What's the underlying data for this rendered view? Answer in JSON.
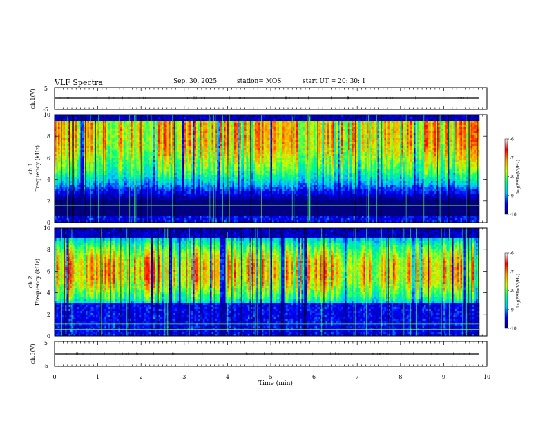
{
  "header": {
    "title": "VLF Spectra",
    "date": "Sep. 30, 2025",
    "station": "station= MOS",
    "start_ut": "start UT =  20: 30: 1"
  },
  "chart_data": [
    {
      "type": "line",
      "panel": "ch1-waveform",
      "ylabel": "ch.1(V)",
      "yticks": [
        "5",
        "-5"
      ],
      "ylim": [
        -5,
        5
      ],
      "series": [
        {
          "values_summary": "approximately flat trace near 0 V for the full 10 minutes"
        }
      ],
      "xlim": [
        0,
        10
      ]
    },
    {
      "type": "heatmap",
      "panel": "ch1-spectrogram",
      "ylabel_line1": "ch.1",
      "ylabel_line2": "Frequency (kHz)",
      "yticks": [
        "0",
        "2",
        "4",
        "6",
        "8",
        "10"
      ],
      "ylim": [
        0,
        10
      ],
      "xlim": [
        0,
        10
      ],
      "band_kHz": [
        0.5,
        9.5
      ],
      "peak_kHz": 8.3,
      "lines_kHz": [
        0.6,
        1.6
      ]
    },
    {
      "type": "heatmap",
      "panel": "ch2-spectrogram",
      "ylabel_line1": "ch.2",
      "ylabel_line2": "Frequency (kHz)",
      "yticks": [
        "0",
        "2",
        "4",
        "6",
        "8",
        "10"
      ],
      "ylim": [
        0,
        10
      ],
      "xlim": [
        0,
        10
      ],
      "band_kHz": [
        3,
        9
      ],
      "peak_kHz": 6.0,
      "lines_kHz": [
        0.6,
        1.1
      ]
    },
    {
      "type": "line",
      "panel": "ch3-waveform",
      "ylabel": "ch.3(V)",
      "yticks": [
        "5",
        "-5"
      ],
      "ylim": [
        -5,
        5
      ],
      "series": [
        {
          "values_summary": "approximately flat trace near 0 V for the full 10 minutes"
        }
      ],
      "xlim": [
        0,
        10
      ]
    }
  ],
  "xaxis": {
    "label": "Time (min)",
    "ticks": [
      "0",
      "1",
      "2",
      "3",
      "4",
      "5",
      "6",
      "7",
      "8",
      "9",
      "10"
    ],
    "range": [
      0,
      10
    ]
  },
  "colorbar": {
    "label": "log(PSD)(V²/Hz)",
    "ticks": [
      "-6",
      "-7",
      "-8",
      "-9",
      "-10"
    ],
    "range": [
      -10,
      -6
    ],
    "stops": [
      "#000080",
      "#0000ff",
      "#00c8ff",
      "#00ff80",
      "#c8ff00",
      "#ffa000",
      "#ff0000",
      "#ffffff"
    ]
  }
}
